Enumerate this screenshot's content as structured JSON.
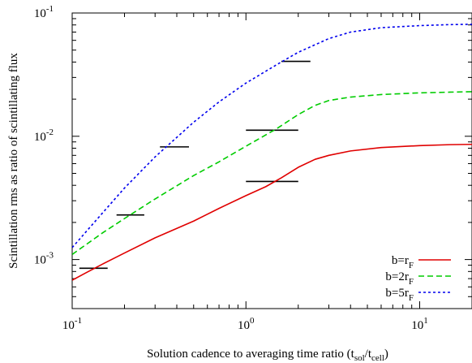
{
  "chart_data": {
    "type": "line",
    "xlabel": {
      "main": "Solution cadence to averaging time ratio (t",
      "sub1": "sol",
      "mid": "/t",
      "sub2": "cell",
      "end": ")"
    },
    "ylabel": "Scintillation rms as ratio of scintillating flux",
    "x_scale": "log",
    "y_scale": "log",
    "xlim": [
      0.1,
      20
    ],
    "ylim": [
      0.0004,
      0.1
    ],
    "x_ticks": [
      {
        "value": 0.1,
        "base": "10",
        "exp": "-1"
      },
      {
        "value": 1,
        "base": "10",
        "exp": "0"
      },
      {
        "value": 10,
        "base": "10",
        "exp": "1"
      }
    ],
    "y_ticks": [
      {
        "value": 0.001,
        "base": "10",
        "exp": "-3"
      },
      {
        "value": 0.01,
        "base": "10",
        "exp": "-2"
      },
      {
        "value": 0.1,
        "base": "10",
        "exp": "-1"
      }
    ],
    "grid": false,
    "legend_position": "bottom-right",
    "series": [
      {
        "name": "b=rF",
        "label_main": "b=r",
        "label_sub": "F",
        "color": "#e00000",
        "dash": "solid",
        "points": [
          [
            0.1,
            0.00068
          ],
          [
            0.12,
            0.00078
          ],
          [
            0.15,
            0.00092
          ],
          [
            0.2,
            0.00113
          ],
          [
            0.3,
            0.0015
          ],
          [
            0.5,
            0.00205
          ],
          [
            0.7,
            0.0026
          ],
          [
            1.0,
            0.0033
          ],
          [
            1.3,
            0.0039
          ],
          [
            1.6,
            0.0046
          ],
          [
            2.0,
            0.0056
          ],
          [
            2.5,
            0.0065
          ],
          [
            3.0,
            0.007
          ],
          [
            4.0,
            0.0076
          ],
          [
            6.0,
            0.0081
          ],
          [
            10,
            0.0084
          ],
          [
            15,
            0.00855
          ],
          [
            20,
            0.0086
          ]
        ]
      },
      {
        "name": "b=2rF",
        "label_main": "b=2r",
        "label_sub": "F",
        "color": "#00cc00",
        "dash": "dashed",
        "points": [
          [
            0.1,
            0.0011
          ],
          [
            0.15,
            0.00165
          ],
          [
            0.2,
            0.00215
          ],
          [
            0.3,
            0.0031
          ],
          [
            0.5,
            0.0048
          ],
          [
            0.7,
            0.0062
          ],
          [
            1.0,
            0.0083
          ],
          [
            1.5,
            0.0115
          ],
          [
            2.0,
            0.015
          ],
          [
            2.5,
            0.0178
          ],
          [
            3.0,
            0.0195
          ],
          [
            4.0,
            0.0208
          ],
          [
            6.0,
            0.0218
          ],
          [
            10,
            0.0225
          ],
          [
            15,
            0.0228
          ],
          [
            20,
            0.023
          ]
        ]
      },
      {
        "name": "b=5rF",
        "label_main": "b=5r",
        "label_sub": "F",
        "color": "#0000ee",
        "dash": "dotted",
        "points": [
          [
            0.1,
            0.00125
          ],
          [
            0.15,
            0.0024
          ],
          [
            0.2,
            0.0038
          ],
          [
            0.3,
            0.0068
          ],
          [
            0.5,
            0.013
          ],
          [
            0.7,
            0.019
          ],
          [
            1.0,
            0.027
          ],
          [
            1.5,
            0.038
          ],
          [
            2.0,
            0.048
          ],
          [
            3.0,
            0.062
          ],
          [
            4.0,
            0.07
          ],
          [
            6.0,
            0.076
          ],
          [
            10,
            0.079
          ],
          [
            15,
            0.0805
          ],
          [
            20,
            0.081
          ]
        ]
      }
    ],
    "error_bars": [
      {
        "x_range": [
          0.11,
          0.16
        ],
        "y": 0.00085
      },
      {
        "x_range": [
          0.18,
          0.26
        ],
        "y": 0.0023
      },
      {
        "x_range": [
          0.32,
          0.47
        ],
        "y": 0.0082
      },
      {
        "x_range": [
          1.0,
          2.0
        ],
        "y": 0.0043
      },
      {
        "x_range": [
          1.0,
          2.0
        ],
        "y": 0.0112
      },
      {
        "x_range": [
          1.6,
          2.35
        ],
        "y": 0.0405
      }
    ]
  }
}
